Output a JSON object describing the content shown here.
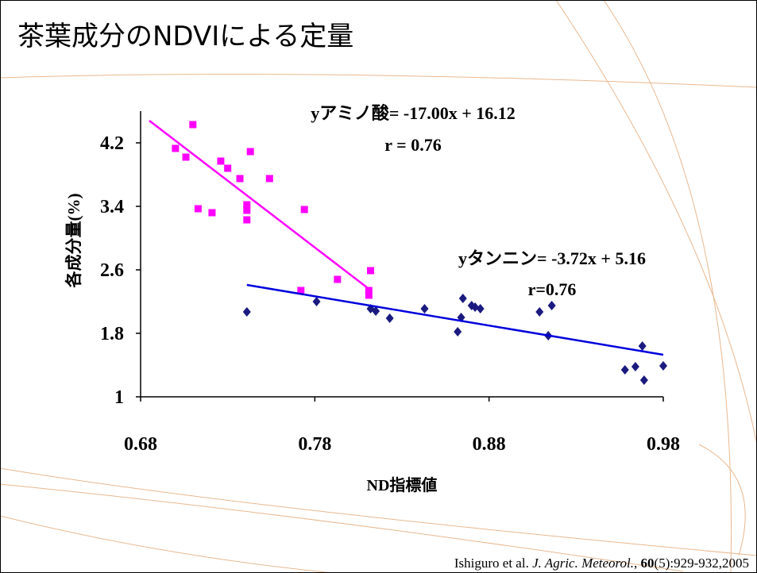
{
  "slide_title": "茶葉成分のNDVIによる定量",
  "citation": {
    "authors": "Ishiguro et al. ",
    "journal": "J. Agric. Meteorol.",
    "sep": ", ",
    "volume": "60",
    "rest": "(5):929-932,2005"
  },
  "chart_data": {
    "type": "scatter",
    "xlabel": "ND指標値",
    "ylabel": "各成分量(%)",
    "xlim": [
      0.68,
      0.98
    ],
    "xticks": [
      0.68,
      0.78,
      0.88,
      0.98
    ],
    "ylim": [
      1,
      4.6
    ],
    "yticks": [
      1,
      1.8,
      2.6,
      3.4,
      4.2
    ],
    "annotations": [
      "yアミノ酸= -17.00x + 16.12",
      "r = 0.76",
      "yタンニン= -3.72x + 5.16",
      "r=0.76"
    ],
    "series": [
      {
        "color": "#ff00ff",
        "marker": "square",
        "x": [
          0.7,
          0.706,
          0.71,
          0.713,
          0.721,
          0.726,
          0.73,
          0.737,
          0.743,
          0.741,
          0.741,
          0.741,
          0.754,
          0.774,
          0.772,
          0.793,
          0.812,
          0.811,
          0.811
        ],
        "values": [
          4.13,
          4.02,
          4.43,
          3.37,
          3.32,
          3.97,
          3.88,
          3.75,
          4.09,
          3.42,
          3.35,
          3.23,
          3.75,
          3.36,
          2.34,
          2.48,
          2.59,
          2.34,
          2.28
        ]
      },
      {
        "color": "#1a1a80",
        "marker": "diamond",
        "x": [
          0.741,
          0.781,
          0.812,
          0.815,
          0.823,
          0.843,
          0.862,
          0.864,
          0.865,
          0.87,
          0.872,
          0.875,
          0.909,
          0.916,
          0.914,
          0.958,
          0.964,
          0.968,
          0.969,
          0.98
        ],
        "values": [
          2.07,
          2.2,
          2.11,
          2.08,
          1.99,
          2.11,
          1.82,
          2.0,
          2.24,
          2.15,
          2.13,
          2.11,
          2.07,
          2.15,
          1.77,
          1.34,
          1.38,
          1.64,
          1.21,
          1.39
        ]
      },
      {
        "color": "#ff00ff",
        "marker": "line",
        "x": [
          0.685,
          0.811
        ],
        "values": [
          4.48,
          2.36
        ]
      },
      {
        "color": "#0000dd",
        "marker": "line",
        "x": [
          0.741,
          0.98
        ],
        "values": [
          2.41,
          1.53
        ]
      }
    ]
  }
}
